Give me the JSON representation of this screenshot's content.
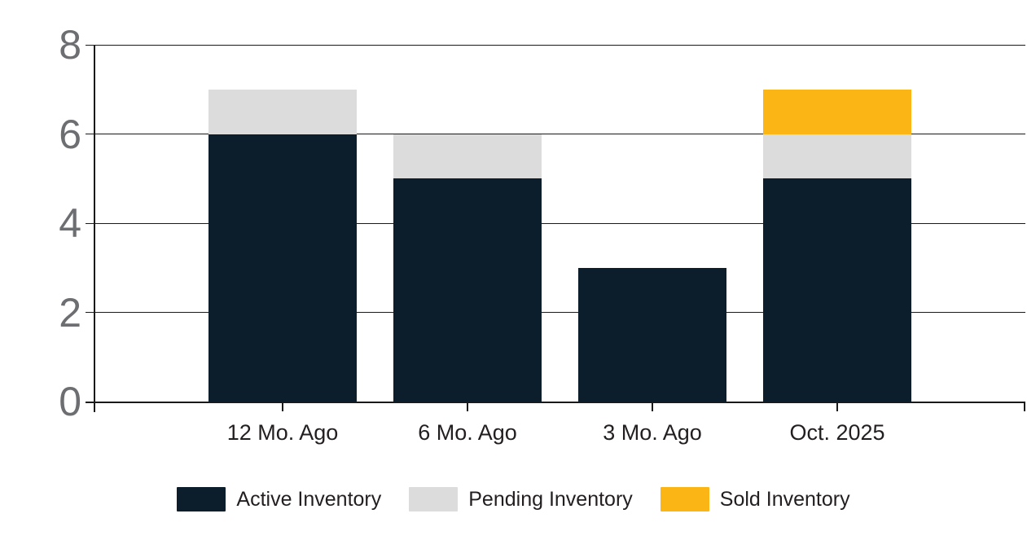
{
  "chart_data": {
    "type": "bar",
    "stacked": true,
    "title": "",
    "xlabel": "",
    "ylabel": "",
    "categories": [
      "12 Mo. Ago",
      "6 Mo. Ago",
      "3 Mo. Ago",
      "Oct. 2025"
    ],
    "series": [
      {
        "name": "Active Inventory",
        "color": "#0c1e2b",
        "values": [
          6,
          5,
          3,
          5
        ]
      },
      {
        "name": "Pending Inventory",
        "color": "#dcdcdc",
        "values": [
          1,
          1,
          0,
          1
        ]
      },
      {
        "name": "Sold Inventory",
        "color": "#fbb616",
        "values": [
          0,
          0,
          0,
          1
        ]
      }
    ],
    "totals": [
      7,
      6,
      3,
      7
    ],
    "ylim": [
      0,
      8
    ],
    "y_ticks": [
      0,
      2,
      4,
      6,
      8
    ],
    "grid": "horizontal",
    "legend_position": "bottom",
    "colors": {
      "background": "#ffffff",
      "axis": "#1a1a1a",
      "gridline": "#1a1a1a",
      "y_tick_label": "#6d6e71",
      "x_tick_label": "#231f20",
      "legend_text": "#231f20"
    }
  }
}
